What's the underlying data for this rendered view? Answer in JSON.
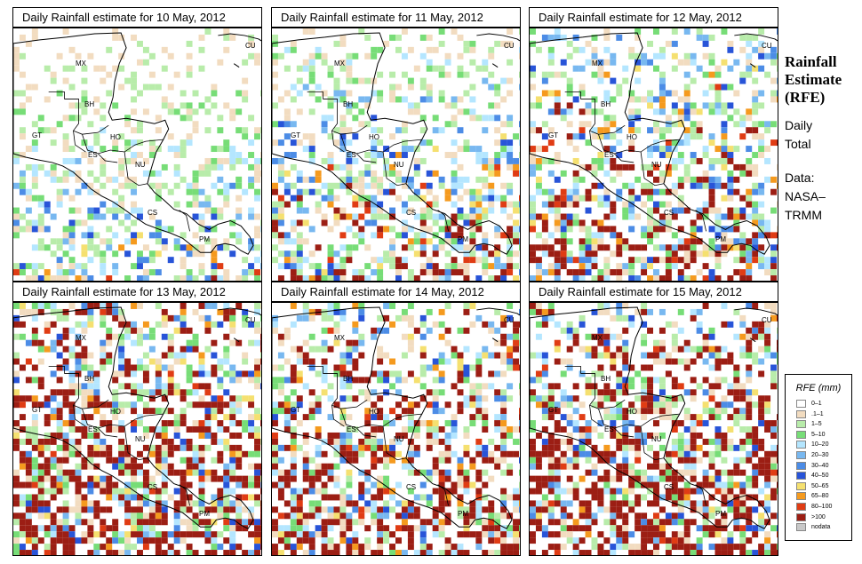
{
  "panels": [
    {
      "title": "Daily Rainfall estimate for  10 May, 2012",
      "seed": 10,
      "intensity": 1
    },
    {
      "title": "Daily Rainfall estimate for  11 May, 2012",
      "seed": 11,
      "intensity": 2
    },
    {
      "title": "Daily Rainfall estimate for  12 May, 2012",
      "seed": 12,
      "intensity": 3
    },
    {
      "title": "Daily Rainfall estimate for  13 May, 2012",
      "seed": 13,
      "intensity": 5
    },
    {
      "title": "Daily Rainfall estimate for  14 May, 2012",
      "seed": 14,
      "intensity": 4
    },
    {
      "title": "Daily Rainfall estimate for  15 May, 2012",
      "seed": 15,
      "intensity": 5
    }
  ],
  "country_labels": {
    "cu": "CU",
    "mx": "MX",
    "bh": "BH",
    "gt": "GT",
    "ho": "HO",
    "es": "ES",
    "nu": "NU",
    "cs": "CS",
    "pm": "PM"
  },
  "sidebar": {
    "title_line1": "Rainfall",
    "title_line2": "Estimate",
    "title_line3": "(RFE)",
    "daily": "Daily",
    "total": "Total",
    "data_label": "Data:",
    "source_line1": "NASA–",
    "source_line2": "TRMM"
  },
  "legend": {
    "title": "RFE (mm)",
    "items": [
      {
        "label": "0–1",
        "color": "#ffffff"
      },
      {
        "label": ".1–1",
        "color": "#f2dcc0"
      },
      {
        "label": "1–5",
        "color": "#b8ecaa"
      },
      {
        "label": "5–10",
        "color": "#77dd77"
      },
      {
        "label": "10–20",
        "color": "#b4e6ff"
      },
      {
        "label": "20–30",
        "color": "#78b8f0"
      },
      {
        "label": "30–40",
        "color": "#4c8ce6"
      },
      {
        "label": "40–50",
        "color": "#2854d8"
      },
      {
        "label": "50–65",
        "color": "#f5e070"
      },
      {
        "label": "65–80",
        "color": "#f59a1e"
      },
      {
        "label": "80–100",
        "color": "#e03c14"
      },
      {
        "label": ">100",
        "color": "#9c1e14"
      },
      {
        "label": "nodata",
        "color": "#c8c8c8"
      }
    ]
  }
}
